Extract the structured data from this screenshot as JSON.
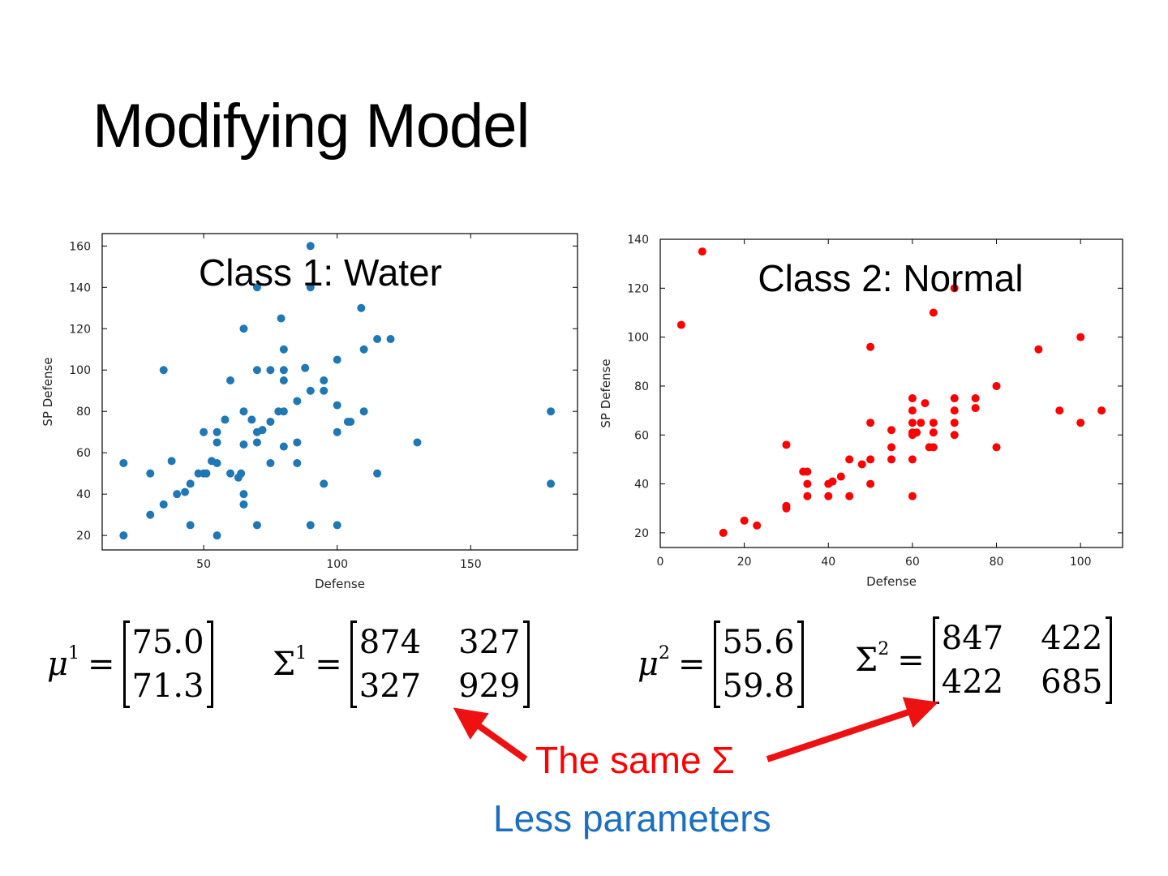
{
  "slide": {
    "title": "Modifying Model"
  },
  "chart_data": [
    {
      "type": "scatter",
      "title": "Class 1: Water",
      "xlabel": "Defense",
      "ylabel": "SP Defense",
      "xlim": [
        12,
        190
      ],
      "ylim": [
        13,
        166
      ],
      "xticks": [
        50,
        100,
        150
      ],
      "yticks": [
        20,
        40,
        60,
        80,
        100,
        120,
        140,
        160
      ],
      "color": "#1f77b4",
      "points": [
        [
          20,
          55
        ],
        [
          20,
          20
        ],
        [
          30,
          50
        ],
        [
          30,
          30
        ],
        [
          35,
          100
        ],
        [
          35,
          35
        ],
        [
          38,
          56
        ],
        [
          40,
          40
        ],
        [
          43,
          41
        ],
        [
          45,
          45
        ],
        [
          45,
          25
        ],
        [
          48,
          50
        ],
        [
          50,
          70
        ],
        [
          50,
          50
        ],
        [
          51,
          50
        ],
        [
          53,
          56
        ],
        [
          55,
          70
        ],
        [
          55,
          65
        ],
        [
          55,
          55
        ],
        [
          55,
          20
        ],
        [
          58,
          76
        ],
        [
          60,
          95
        ],
        [
          60,
          50
        ],
        [
          63,
          48
        ],
        [
          64,
          50
        ],
        [
          65,
          120
        ],
        [
          65,
          80
        ],
        [
          65,
          64
        ],
        [
          65,
          40
        ],
        [
          65,
          35
        ],
        [
          68,
          76
        ],
        [
          70,
          140
        ],
        [
          70,
          100
        ],
        [
          70,
          70
        ],
        [
          70,
          65
        ],
        [
          70,
          25
        ],
        [
          72,
          71
        ],
        [
          75,
          100
        ],
        [
          75,
          75
        ],
        [
          75,
          55
        ],
        [
          78,
          80
        ],
        [
          79,
          125
        ],
        [
          80,
          100
        ],
        [
          80,
          110
        ],
        [
          80,
          95
        ],
        [
          80,
          80
        ],
        [
          80,
          63
        ],
        [
          85,
          85
        ],
        [
          85,
          65
        ],
        [
          85,
          55
        ],
        [
          88,
          101
        ],
        [
          90,
          160
        ],
        [
          90,
          140
        ],
        [
          90,
          90
        ],
        [
          90,
          25
        ],
        [
          95,
          95
        ],
        [
          95,
          90
        ],
        [
          95,
          45
        ],
        [
          100,
          105
        ],
        [
          100,
          83
        ],
        [
          100,
          70
        ],
        [
          100,
          25
        ],
        [
          104,
          75
        ],
        [
          105,
          75
        ],
        [
          109,
          130
        ],
        [
          110,
          110
        ],
        [
          110,
          80
        ],
        [
          115,
          115
        ],
        [
          115,
          50
        ],
        [
          120,
          115
        ],
        [
          130,
          65
        ],
        [
          180,
          80
        ],
        [
          180,
          45
        ]
      ]
    },
    {
      "type": "scatter",
      "title": "Class 2: Normal",
      "xlabel": "Defense",
      "ylabel": "SP Defense",
      "xlim": [
        0,
        110
      ],
      "ylim": [
        14,
        140
      ],
      "xticks": [
        0,
        20,
        40,
        60,
        80,
        100
      ],
      "yticks": [
        20,
        40,
        60,
        80,
        100,
        120,
        140
      ],
      "color": "#ff0000",
      "points": [
        [
          5,
          105
        ],
        [
          10,
          135
        ],
        [
          15,
          20
        ],
        [
          20,
          25
        ],
        [
          23,
          23
        ],
        [
          30,
          56
        ],
        [
          30,
          31
        ],
        [
          30,
          30
        ],
        [
          34,
          45
        ],
        [
          35,
          45
        ],
        [
          35,
          40
        ],
        [
          35,
          35
        ],
        [
          40,
          40
        ],
        [
          40,
          35
        ],
        [
          41,
          41
        ],
        [
          43,
          43
        ],
        [
          45,
          50
        ],
        [
          45,
          35
        ],
        [
          48,
          48
        ],
        [
          50,
          96
        ],
        [
          50,
          65
        ],
        [
          50,
          50
        ],
        [
          50,
          40
        ],
        [
          55,
          62
        ],
        [
          55,
          55
        ],
        [
          55,
          50
        ],
        [
          60,
          75
        ],
        [
          60,
          70
        ],
        [
          60,
          65
        ],
        [
          60,
          61
        ],
        [
          60,
          60
        ],
        [
          60,
          50
        ],
        [
          60,
          35
        ],
        [
          61,
          61
        ],
        [
          62,
          65
        ],
        [
          63,
          73
        ],
        [
          64,
          55
        ],
        [
          65,
          110
        ],
        [
          65,
          65
        ],
        [
          65,
          61
        ],
        [
          65,
          55
        ],
        [
          70,
          120
        ],
        [
          70,
          75
        ],
        [
          70,
          70
        ],
        [
          70,
          65
        ],
        [
          70,
          60
        ],
        [
          75,
          75
        ],
        [
          75,
          71
        ],
        [
          80,
          80
        ],
        [
          80,
          55
        ],
        [
          90,
          95
        ],
        [
          95,
          70
        ],
        [
          100,
          100
        ],
        [
          100,
          65
        ],
        [
          105,
          70
        ]
      ]
    }
  ],
  "formulas": {
    "mu1": {
      "symbol": "μ",
      "sup": "1",
      "eq": "=",
      "values": [
        "75.0",
        "71.3"
      ]
    },
    "sigma1": {
      "symbol": "Σ",
      "sup": "1",
      "eq": "=",
      "values": [
        "874",
        "327",
        "327",
        "929"
      ]
    },
    "mu2": {
      "symbol": "μ",
      "sup": "2",
      "eq": "=",
      "values": [
        "55.6",
        "59.8"
      ]
    },
    "sigma2": {
      "symbol": "Σ",
      "sup": "2",
      "eq": "=",
      "values": [
        "847",
        "422",
        "422",
        "685"
      ]
    }
  },
  "annotations": {
    "same_sigma": "The same Σ",
    "less_params": "Less parameters",
    "arrow_color": "#ee1111"
  }
}
